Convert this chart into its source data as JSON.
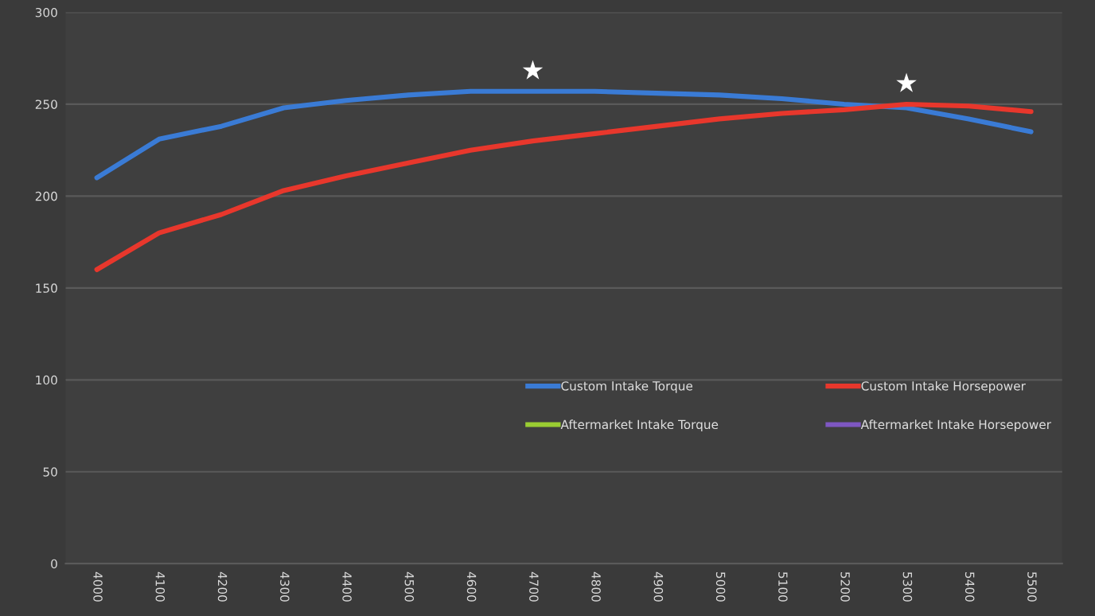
{
  "chart_data": {
    "type": "line",
    "categories": [
      "4000",
      "4100",
      "4200",
      "4300",
      "4400",
      "4500",
      "4600",
      "4700",
      "4800",
      "4900",
      "5000",
      "5100",
      "5200",
      "5300",
      "5400",
      "5500"
    ],
    "series": [
      {
        "name": "Custom Intake Torque",
        "color": "#3a7bd5",
        "values": [
          210,
          231,
          238,
          248,
          252,
          255,
          257,
          257,
          257,
          256,
          255,
          253,
          250,
          248,
          242,
          235
        ]
      },
      {
        "name": "Custom Intake Horsepower",
        "color": "#e8372c",
        "values": [
          160,
          180,
          190,
          203,
          211,
          218,
          225,
          230,
          234,
          238,
          242,
          245,
          247,
          250,
          249,
          246
        ]
      },
      {
        "name": "Aftermarket Intake Torque",
        "color": "#9acd32",
        "values": [
          null,
          null,
          null,
          null,
          null,
          null,
          null,
          null,
          null,
          null,
          null,
          null,
          null,
          null,
          null,
          null
        ]
      },
      {
        "name": "Aftermarket Intake Horsepower",
        "color": "#7e57c2",
        "values": [
          null,
          null,
          null,
          null,
          null,
          null,
          null,
          null,
          null,
          null,
          null,
          null,
          null,
          null,
          null,
          null
        ]
      }
    ],
    "annotations": [
      {
        "text": "★",
        "x": "4700",
        "y": 257
      },
      {
        "text": "★",
        "x": "5300",
        "y": 250
      }
    ],
    "ylim": [
      0,
      300
    ],
    "yticks": [
      0,
      50,
      100,
      150,
      200,
      250,
      300
    ],
    "grid": "y",
    "legend": "bottom right",
    "marker": "none",
    "line_style": "solid"
  }
}
